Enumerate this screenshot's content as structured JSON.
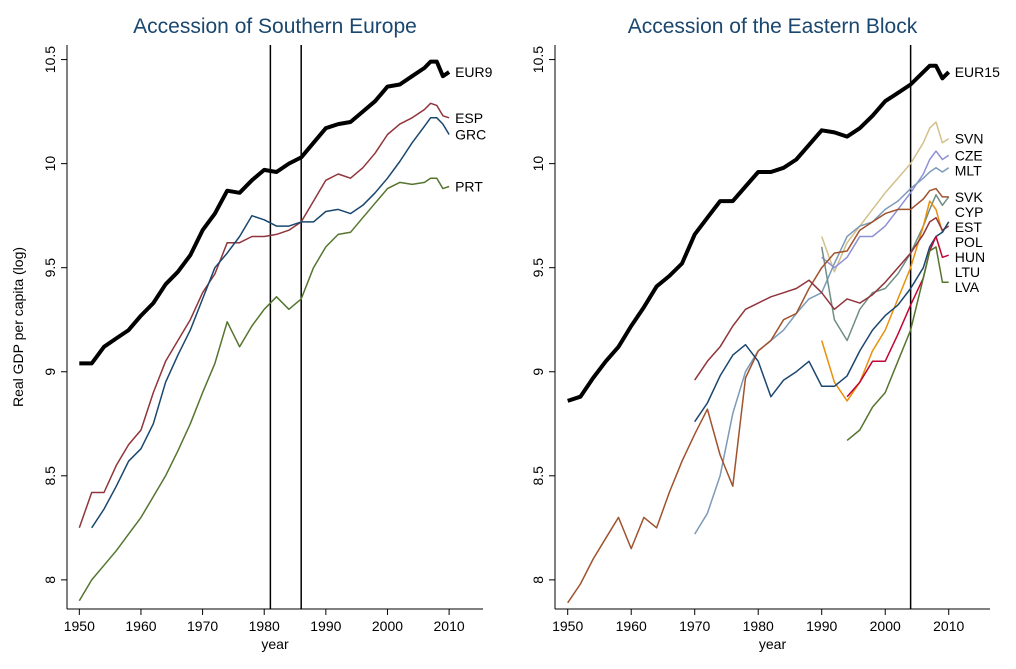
{
  "chart_data": [
    {
      "type": "line",
      "title": "Accession of Southern Europe",
      "xlabel": "year",
      "ylabel": "Real GDP per capita (log)",
      "x": [
        1950,
        1952,
        1954,
        1956,
        1958,
        1960,
        1962,
        1964,
        1966,
        1968,
        1970,
        1972,
        1974,
        1976,
        1978,
        1980,
        1982,
        1984,
        1986,
        1988,
        1990,
        1992,
        1994,
        1996,
        1998,
        2000,
        2002,
        2004,
        2006,
        2007,
        2008,
        2009,
        2010
      ],
      "xlim": [
        1948,
        2015.5
      ],
      "xticks": [
        1950,
        1960,
        1970,
        1980,
        1990,
        2000,
        2010
      ],
      "ylim": [
        7.86,
        10.57
      ],
      "yticks": [
        8,
        8.5,
        9,
        9.5,
        10,
        10.5
      ],
      "vlines": [
        1981,
        1986
      ],
      "series": [
        {
          "name": "EUR9",
          "color": "#000000",
          "width": 4,
          "values": [
            9.04,
            9.04,
            9.12,
            9.16,
            9.2,
            9.27,
            9.33,
            9.42,
            9.48,
            9.56,
            9.68,
            9.76,
            9.87,
            9.86,
            9.92,
            9.97,
            9.96,
            10.0,
            10.03,
            10.1,
            10.17,
            10.19,
            10.2,
            10.25,
            10.3,
            10.37,
            10.38,
            10.42,
            10.46,
            10.49,
            10.49,
            10.42,
            10.44
          ]
        },
        {
          "name": "ESP",
          "color": "#90353b",
          "width": 1.5,
          "values": [
            8.25,
            8.42,
            8.42,
            8.55,
            8.65,
            8.72,
            8.9,
            9.05,
            9.15,
            9.25,
            9.38,
            9.47,
            9.62,
            9.62,
            9.65,
            9.65,
            9.66,
            9.68,
            9.72,
            9.82,
            9.92,
            9.95,
            9.93,
            9.98,
            10.05,
            10.14,
            10.19,
            10.22,
            10.26,
            10.29,
            10.28,
            10.23,
            10.22
          ]
        },
        {
          "name": "GRC",
          "color": "#1a476f",
          "width": 1.5,
          "values": [
            null,
            8.25,
            8.34,
            8.45,
            8.57,
            8.63,
            8.75,
            8.95,
            9.08,
            9.2,
            9.35,
            9.5,
            9.57,
            9.65,
            9.75,
            9.73,
            9.7,
            9.7,
            9.72,
            9.72,
            9.77,
            9.78,
            9.76,
            9.8,
            9.86,
            9.93,
            10.01,
            10.1,
            10.18,
            10.22,
            10.22,
            10.19,
            10.14
          ]
        },
        {
          "name": "PRT",
          "color": "#55752f",
          "width": 1.5,
          "values": [
            7.9,
            8.0,
            8.07,
            8.14,
            8.22,
            8.3,
            8.4,
            8.5,
            8.62,
            8.75,
            8.9,
            9.04,
            9.24,
            9.12,
            9.22,
            9.3,
            9.36,
            9.3,
            9.35,
            9.5,
            9.6,
            9.66,
            9.67,
            9.74,
            9.81,
            9.88,
            9.91,
            9.9,
            9.91,
            9.93,
            9.93,
            9.88,
            9.89
          ]
        }
      ]
    },
    {
      "type": "line",
      "title": "Accession of the Eastern Block",
      "xlabel": "year",
      "x": [
        1950,
        1952,
        1954,
        1956,
        1958,
        1960,
        1962,
        1964,
        1966,
        1968,
        1970,
        1972,
        1974,
        1976,
        1978,
        1980,
        1982,
        1984,
        1986,
        1988,
        1990,
        1992,
        1994,
        1996,
        1998,
        2000,
        2002,
        2004,
        2006,
        2007,
        2008,
        2009,
        2010
      ],
      "xlim": [
        1948,
        2016.5
      ],
      "xticks": [
        1950,
        1960,
        1970,
        1980,
        1990,
        2000,
        2010
      ],
      "ylim": [
        7.86,
        10.57
      ],
      "yticks": [
        8,
        8.5,
        9,
        9.5,
        10,
        10.5
      ],
      "vlines": [
        2004
      ],
      "series": [
        {
          "name": "EUR15",
          "color": "#000000",
          "width": 4,
          "values": [
            8.86,
            8.88,
            8.97,
            9.05,
            9.12,
            9.22,
            9.31,
            9.41,
            9.46,
            9.52,
            9.66,
            9.74,
            9.82,
            9.82,
            9.89,
            9.96,
            9.96,
            9.98,
            10.02,
            10.09,
            10.16,
            10.15,
            10.13,
            10.17,
            10.23,
            10.3,
            10.34,
            10.38,
            10.44,
            10.47,
            10.47,
            10.41,
            10.44
          ]
        },
        {
          "name": "SVN",
          "color": "#d3c08a",
          "width": 1.5,
          "values": [
            null,
            null,
            null,
            null,
            null,
            null,
            null,
            null,
            null,
            null,
            null,
            null,
            null,
            null,
            null,
            null,
            null,
            null,
            null,
            null,
            9.65,
            9.48,
            9.62,
            9.7,
            9.78,
            9.86,
            9.93,
            10.0,
            10.1,
            10.17,
            10.2,
            10.1,
            10.12
          ]
        },
        {
          "name": "CZE",
          "color": "#8e8fd6",
          "width": 1.5,
          "values": [
            null,
            null,
            null,
            null,
            null,
            null,
            null,
            null,
            null,
            null,
            null,
            null,
            null,
            null,
            null,
            null,
            null,
            null,
            null,
            null,
            9.55,
            9.5,
            9.55,
            9.65,
            9.65,
            9.7,
            9.78,
            9.86,
            9.95,
            10.02,
            10.06,
            10.02,
            10.04
          ]
        },
        {
          "name": "MLT",
          "color": "#7d9ab8",
          "width": 1.5,
          "values": [
            null,
            null,
            null,
            null,
            null,
            null,
            null,
            null,
            null,
            null,
            8.22,
            8.32,
            8.5,
            8.8,
            9.0,
            9.1,
            9.15,
            9.2,
            9.28,
            9.35,
            9.38,
            9.52,
            9.65,
            9.7,
            9.72,
            9.78,
            9.82,
            9.88,
            9.93,
            9.96,
            9.98,
            9.96,
            9.98
          ]
        },
        {
          "name": "SVK",
          "color": "#6e8e84",
          "width": 1.5,
          "values": [
            null,
            null,
            null,
            null,
            null,
            null,
            null,
            null,
            null,
            null,
            null,
            null,
            null,
            null,
            null,
            null,
            null,
            null,
            null,
            null,
            9.6,
            9.25,
            9.15,
            9.3,
            9.38,
            9.4,
            9.47,
            9.57,
            9.7,
            9.78,
            9.85,
            9.8,
            9.84
          ]
        },
        {
          "name": "CYP",
          "color": "#a0522d",
          "width": 1.5,
          "values": [
            7.89,
            7.98,
            8.1,
            8.2,
            8.3,
            8.15,
            8.3,
            8.25,
            8.42,
            8.57,
            8.7,
            8.82,
            8.6,
            8.45,
            8.97,
            9.1,
            9.15,
            9.25,
            9.28,
            9.4,
            9.5,
            9.57,
            9.58,
            9.68,
            9.72,
            9.76,
            9.78,
            9.78,
            9.83,
            9.87,
            9.88,
            9.84,
            9.84
          ]
        },
        {
          "name": "EST",
          "color": "#e8900c",
          "width": 1.5,
          "values": [
            null,
            null,
            null,
            null,
            null,
            null,
            null,
            null,
            null,
            null,
            null,
            null,
            null,
            null,
            null,
            null,
            null,
            null,
            null,
            null,
            9.15,
            8.95,
            8.86,
            8.95,
            9.1,
            9.2,
            9.35,
            9.5,
            9.7,
            9.82,
            9.78,
            9.67,
            9.72
          ]
        },
        {
          "name": "HUN",
          "color": "#90353b",
          "width": 1.5,
          "values": [
            null,
            null,
            null,
            null,
            null,
            null,
            null,
            null,
            null,
            null,
            8.96,
            9.05,
            9.12,
            9.22,
            9.3,
            9.33,
            9.36,
            9.38,
            9.4,
            9.44,
            9.38,
            9.3,
            9.35,
            9.33,
            9.37,
            9.43,
            9.5,
            9.57,
            9.66,
            9.72,
            9.74,
            9.68,
            9.7
          ]
        },
        {
          "name": "POL",
          "color": "#1a476f",
          "width": 1.5,
          "values": [
            null,
            null,
            null,
            null,
            null,
            null,
            null,
            null,
            null,
            null,
            8.76,
            8.85,
            8.98,
            9.08,
            9.13,
            9.05,
            8.88,
            8.96,
            9.0,
            9.05,
            8.93,
            8.93,
            8.98,
            9.1,
            9.2,
            9.27,
            9.32,
            9.4,
            9.5,
            9.6,
            9.65,
            9.67,
            9.72
          ]
        },
        {
          "name": "LTU",
          "color": "#c10534",
          "width": 1.5,
          "values": [
            null,
            null,
            null,
            null,
            null,
            null,
            null,
            null,
            null,
            null,
            null,
            null,
            null,
            null,
            null,
            null,
            null,
            null,
            null,
            null,
            null,
            null,
            8.88,
            8.95,
            9.05,
            9.05,
            9.18,
            9.32,
            9.45,
            9.58,
            9.65,
            9.55,
            9.56
          ]
        },
        {
          "name": "LVA",
          "color": "#55752f",
          "width": 1.5,
          "values": [
            null,
            null,
            null,
            null,
            null,
            null,
            null,
            null,
            null,
            null,
            null,
            null,
            null,
            null,
            null,
            null,
            null,
            null,
            null,
            null,
            null,
            null,
            8.67,
            8.72,
            8.83,
            8.9,
            9.05,
            9.2,
            9.45,
            9.58,
            9.6,
            9.43,
            9.43
          ]
        }
      ]
    }
  ]
}
